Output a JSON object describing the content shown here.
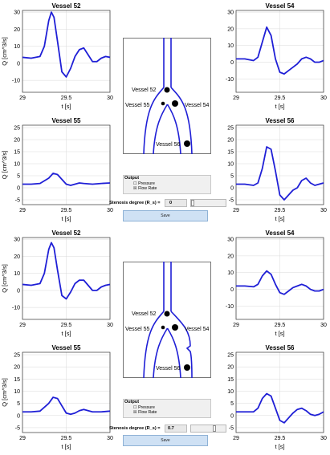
{
  "colors": {
    "curve": "#1f1fd6",
    "axis": "#333333",
    "grid": "#d9d9d9",
    "tree": "#1f1fd6"
  },
  "chart_data": [
    {
      "type": "line",
      "title": "Vessel 52",
      "xlabel": "t [s]",
      "ylabel": "Q [cm^3/s]",
      "xlim": [
        29,
        30
      ],
      "ylim": [
        -17,
        31
      ],
      "xticks": [
        29,
        29.5,
        30
      ],
      "xtick_labels": [
        "29",
        "29.5",
        "30"
      ],
      "yticks": [
        -10,
        0,
        10,
        20,
        30
      ],
      "ytick_labels": [
        "-10",
        "0",
        "10",
        "20",
        "30"
      ],
      "grid": true,
      "x": [
        29,
        29.1,
        29.2,
        29.25,
        29.3,
        29.33,
        29.36,
        29.4,
        29.45,
        29.5,
        29.55,
        29.6,
        29.65,
        29.7,
        29.75,
        29.8,
        29.85,
        29.9,
        29.95,
        30
      ],
      "y": [
        3.5,
        3,
        4,
        10,
        25,
        30,
        27,
        13,
        -5,
        -8,
        -3,
        4,
        8,
        9,
        5,
        1,
        1,
        3,
        4,
        3.5
      ]
    },
    {
      "type": "line",
      "title": "Vessel 54",
      "xlabel": "t [s]",
      "ylabel": "",
      "xlim": [
        29,
        30
      ],
      "ylim": [
        -18,
        31
      ],
      "xticks": [
        29,
        29.5,
        30
      ],
      "xtick_labels": [
        "29",
        "29.5",
        "30"
      ],
      "yticks": [
        -10,
        0,
        10,
        20,
        30
      ],
      "ytick_labels": [
        "-10",
        "0",
        "10",
        "20",
        "30"
      ],
      "grid": true,
      "x": [
        29,
        29.1,
        29.2,
        29.25,
        29.3,
        29.35,
        29.4,
        29.45,
        29.5,
        29.55,
        29.6,
        29.65,
        29.7,
        29.75,
        29.8,
        29.85,
        29.9,
        29.95,
        30
      ],
      "y": [
        2,
        2,
        1,
        3,
        12,
        21,
        16,
        2,
        -6,
        -7,
        -5,
        -3,
        -1,
        2,
        3,
        2,
        0,
        0,
        1
      ]
    },
    {
      "type": "line",
      "title": "Vessel 55",
      "xlabel": "t [s]",
      "ylabel": "Q [cm^3/s]",
      "xlim": [
        29,
        30
      ],
      "ylim": [
        -7,
        26
      ],
      "xticks": [
        29,
        29.5,
        30
      ],
      "xtick_labels": [
        "29",
        "29.5",
        "30"
      ],
      "yticks": [
        -5,
        0,
        5,
        10,
        15,
        20,
        25
      ],
      "ytick_labels": [
        "-5",
        "0",
        "5",
        "10",
        "15",
        "20",
        "25"
      ],
      "grid": true,
      "x": [
        29,
        29.1,
        29.2,
        29.3,
        29.35,
        29.4,
        29.45,
        29.5,
        29.55,
        29.6,
        29.65,
        29.7,
        29.8,
        29.9,
        30
      ],
      "y": [
        1.5,
        1.5,
        1.8,
        4,
        6,
        5.5,
        3.5,
        1.5,
        1,
        1.5,
        2,
        1.8,
        1.5,
        1.8,
        2
      ]
    },
    {
      "type": "line",
      "title": "Vessel 56",
      "xlabel": "t [s]",
      "ylabel": "",
      "xlim": [
        29,
        30
      ],
      "ylim": [
        -7,
        26
      ],
      "xticks": [
        29,
        29.5,
        30
      ],
      "xtick_labels": [
        "29",
        "29.5",
        "30"
      ],
      "yticks": [
        -5,
        0,
        5,
        10,
        15,
        20,
        25
      ],
      "ytick_labels": [
        "-5",
        "0",
        "5",
        "10",
        "15",
        "20",
        "25"
      ],
      "grid": true,
      "x": [
        29,
        29.1,
        29.2,
        29.25,
        29.3,
        29.35,
        29.4,
        29.45,
        29.5,
        29.55,
        29.6,
        29.65,
        29.7,
        29.75,
        29.8,
        29.85,
        29.9,
        29.95,
        30
      ],
      "y": [
        1.5,
        1.5,
        1,
        2,
        8,
        17,
        16,
        7,
        -3,
        -5,
        -3,
        -1,
        0,
        3,
        4,
        2,
        1,
        1.5,
        2
      ]
    },
    {
      "type": "line",
      "title": "Vessel 52",
      "xlabel": "t [s]",
      "ylabel": "Q [cm^3/s]",
      "xlim": [
        29,
        30
      ],
      "ylim": [
        -17,
        31
      ],
      "xticks": [
        29,
        29.5,
        30
      ],
      "xtick_labels": [
        "29",
        "29.5",
        "30"
      ],
      "yticks": [
        -10,
        0,
        10,
        20,
        30
      ],
      "ytick_labels": [
        "-10",
        "0",
        "10",
        "20",
        "30"
      ],
      "grid": true,
      "x": [
        29,
        29.1,
        29.2,
        29.25,
        29.3,
        29.33,
        29.36,
        29.4,
        29.45,
        29.5,
        29.55,
        29.6,
        29.65,
        29.7,
        29.75,
        29.8,
        29.85,
        29.9,
        29.95,
        30
      ],
      "y": [
        3.5,
        3,
        4,
        10,
        24,
        28,
        25,
        12,
        -3,
        -5,
        -1,
        4,
        6,
        6,
        3,
        0,
        0,
        2,
        3,
        3.5
      ]
    },
    {
      "type": "line",
      "title": "Vessel 54",
      "xlabel": "t [s]",
      "ylabel": "",
      "xlim": [
        29,
        30
      ],
      "ylim": [
        -18,
        31
      ],
      "xticks": [
        29,
        29.5,
        30
      ],
      "xtick_labels": [
        "29",
        "29.5",
        "30"
      ],
      "yticks": [
        -10,
        0,
        10,
        20,
        30
      ],
      "ytick_labels": [
        "-10",
        "0",
        "10",
        "20",
        "30"
      ],
      "grid": true,
      "x": [
        29,
        29.1,
        29.2,
        29.25,
        29.3,
        29.35,
        29.4,
        29.45,
        29.5,
        29.55,
        29.6,
        29.65,
        29.7,
        29.75,
        29.8,
        29.85,
        29.9,
        29.95,
        30
      ],
      "y": [
        2,
        2,
        1.5,
        3,
        8,
        11,
        9,
        3,
        -2,
        -3,
        -1,
        1,
        2,
        3,
        2,
        0,
        -1,
        -1,
        0
      ]
    },
    {
      "type": "line",
      "title": "Vessel 55",
      "xlabel": "t [s]",
      "ylabel": "Q [cm^3/s]",
      "xlim": [
        29,
        30
      ],
      "ylim": [
        -7,
        26
      ],
      "xticks": [
        29,
        29.5,
        30
      ],
      "xtick_labels": [
        "29",
        "29.5",
        "30"
      ],
      "yticks": [
        -5,
        0,
        5,
        10,
        15,
        20,
        25
      ],
      "ytick_labels": [
        "-5",
        "0",
        "5",
        "10",
        "15",
        "20",
        "25"
      ],
      "grid": true,
      "x": [
        29,
        29.1,
        29.2,
        29.3,
        29.35,
        29.4,
        29.45,
        29.5,
        29.55,
        29.6,
        29.65,
        29.7,
        29.8,
        29.9,
        30
      ],
      "y": [
        1.5,
        1.5,
        1.8,
        5,
        7.5,
        7,
        4,
        1,
        0.5,
        1,
        2,
        2.5,
        1.5,
        1.5,
        1.8
      ]
    },
    {
      "type": "line",
      "title": "Vessel 56",
      "xlabel": "t [s]",
      "ylabel": "",
      "xlim": [
        29,
        30
      ],
      "ylim": [
        -7,
        26
      ],
      "xticks": [
        29,
        29.5,
        30
      ],
      "xtick_labels": [
        "29",
        "29.5",
        "30"
      ],
      "yticks": [
        -5,
        0,
        5,
        10,
        15,
        20,
        25
      ],
      "ytick_labels": [
        "-5",
        "0",
        "5",
        "10",
        "15",
        "20",
        "25"
      ],
      "grid": true,
      "x": [
        29,
        29.1,
        29.2,
        29.25,
        29.3,
        29.35,
        29.4,
        29.45,
        29.5,
        29.55,
        29.6,
        29.65,
        29.7,
        29.75,
        29.8,
        29.85,
        29.9,
        29.95,
        30
      ],
      "y": [
        1.5,
        1.5,
        1.5,
        3,
        7,
        9,
        8,
        3,
        -2,
        -3,
        -1,
        1,
        2.5,
        3,
        2,
        0.5,
        0,
        0.5,
        1.5
      ]
    }
  ],
  "diagrams": [
    {
      "labels": {
        "v52": "Vessel 52",
        "v55": "Vessel 55",
        "v54": "Vessel 54",
        "v56": "Vessel 56"
      }
    },
    {
      "labels": {
        "v52": "Vessel 52",
        "v55": "Vessel 55",
        "v54": "Vessel 54",
        "v56": "Vessel 56"
      }
    }
  ],
  "controls": [
    {
      "output_title": "Output",
      "option_pressure": "Pressure",
      "option_flow": "Flow Rate",
      "stenosis_label": "Stenosis degree (R_s) =",
      "stenosis_value": "0",
      "stenosis_fraction": 0,
      "save_label": "Save"
    },
    {
      "output_title": "Output",
      "option_pressure": "Pressure",
      "option_flow": "Flow Rate",
      "stenosis_label": "Stenosis degree (R_s) =",
      "stenosis_value": "0.7",
      "stenosis_fraction": 0.7,
      "save_label": "Save"
    }
  ]
}
